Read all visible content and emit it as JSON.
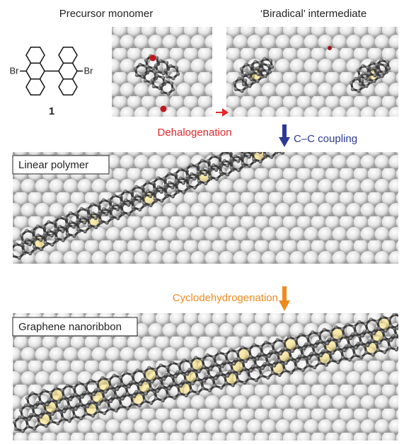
{
  "structure": {
    "bromine_left": "Br",
    "bromine_right": "Br",
    "compound_number": "1"
  },
  "panels": [
    {
      "title": "Precursor monomer"
    },
    {
      "title": "‘Biradical’ intermediate"
    },
    {
      "label": "Linear polymer"
    },
    {
      "label": "Graphene nanoribbon"
    }
  ],
  "steps": [
    {
      "label": "Dehalogenation"
    },
    {
      "label": "C–C coupling"
    },
    {
      "label": "Cyclodehydrogenation"
    }
  ]
}
